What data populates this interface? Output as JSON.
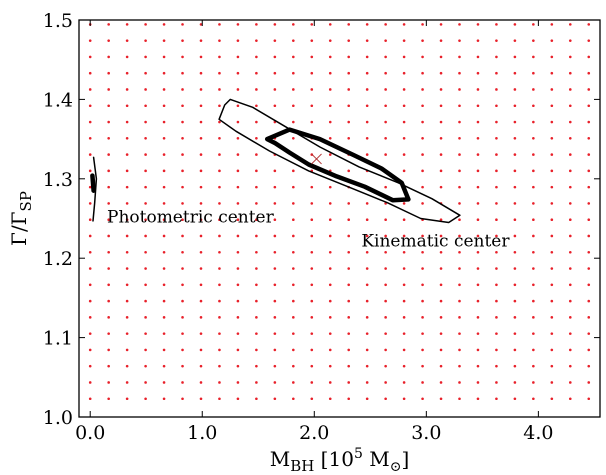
{
  "chart_data": {
    "type": "contour",
    "title": "",
    "xlabel": {
      "main": "M",
      "sub": "BH",
      "pre": " [10",
      "sup": "5",
      "post": " M",
      "sub2": "⊙",
      "end": "]"
    },
    "ylabel": {
      "main": "Γ/Γ",
      "sub": "SP"
    },
    "xlim": [
      -0.1,
      4.55
    ],
    "ylim": [
      1.0,
      1.5
    ],
    "xticks": [
      0.0,
      1.0,
      2.0,
      3.0,
      4.0
    ],
    "xtick_labels": [
      "0.0",
      "1.0",
      "2.0",
      "3.0",
      "4.0"
    ],
    "yticks": [
      1.0,
      1.1,
      1.2,
      1.3,
      1.4,
      1.5
    ],
    "ytick_labels": [
      "1.0",
      "1.1",
      "1.2",
      "1.3",
      "1.4",
      "1.5"
    ],
    "grid": false,
    "legend": null,
    "grid_points": {
      "color": "#e8202a",
      "x_start": 0.0,
      "x_step": 0.1648,
      "y_start": 1.023,
      "y_step": 0.0205
    },
    "best_fit": {
      "x": 2.02,
      "y": 1.325,
      "marker": "x",
      "color": "#b03030"
    },
    "contours": [
      {
        "name": "kinematic-outer",
        "weight": "thin",
        "points": [
          [
            1.25,
            1.4
          ],
          [
            1.45,
            1.39
          ],
          [
            1.75,
            1.365
          ],
          [
            2.05,
            1.34
          ],
          [
            2.4,
            1.315
          ],
          [
            2.75,
            1.295
          ],
          [
            3.05,
            1.275
          ],
          [
            3.3,
            1.254
          ],
          [
            3.2,
            1.245
          ],
          [
            2.95,
            1.25
          ],
          [
            2.65,
            1.27
          ],
          [
            2.3,
            1.29
          ],
          [
            1.95,
            1.31
          ],
          [
            1.6,
            1.335
          ],
          [
            1.3,
            1.36
          ],
          [
            1.15,
            1.375
          ],
          [
            1.2,
            1.393
          ]
        ]
      },
      {
        "name": "kinematic-inner",
        "weight": "thick",
        "points": [
          [
            1.58,
            1.35
          ],
          [
            1.78,
            1.362
          ],
          [
            2.05,
            1.35
          ],
          [
            2.35,
            1.33
          ],
          [
            2.6,
            1.313
          ],
          [
            2.78,
            1.295
          ],
          [
            2.84,
            1.274
          ],
          [
            2.7,
            1.273
          ],
          [
            2.45,
            1.29
          ],
          [
            2.2,
            1.303
          ],
          [
            1.95,
            1.318
          ],
          [
            1.78,
            1.333
          ],
          [
            1.65,
            1.345
          ]
        ]
      },
      {
        "name": "photometric-outer",
        "weight": "thin",
        "points": [
          [
            0.03,
            1.327
          ],
          [
            0.055,
            1.3
          ],
          [
            0.04,
            1.27
          ],
          [
            0.025,
            1.247
          ]
        ]
      },
      {
        "name": "photometric-inner",
        "weight": "thick",
        "points": [
          [
            0.02,
            1.304
          ],
          [
            0.03,
            1.285
          ]
        ]
      }
    ],
    "annotations": [
      {
        "text": "Photometric center",
        "x": 0.15,
        "y": 1.245
      },
      {
        "text": "Kinematic center",
        "x": 2.42,
        "y": 1.215
      }
    ]
  }
}
